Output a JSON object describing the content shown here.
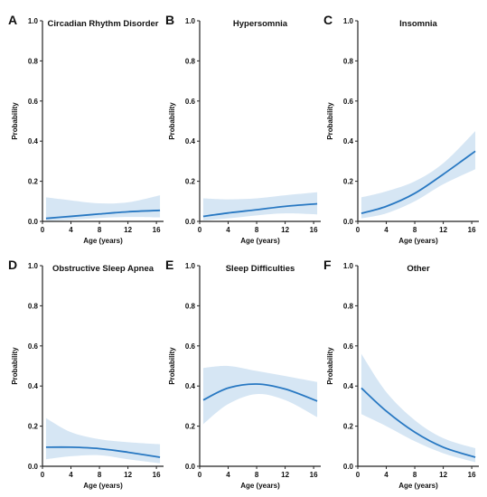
{
  "chart_data": [
    {
      "letter": "A",
      "title": "Circadian Rhythm Disorder",
      "type": "line",
      "xlabel": "Age (years)",
      "ylabel": "Probability",
      "xlim": [
        0,
        17
      ],
      "ylim": [
        0,
        1.0
      ],
      "x_ticks": [
        "0",
        "4",
        "8",
        "12",
        "16"
      ],
      "y_ticks": [
        "0.0",
        "0.2",
        "0.4",
        "0.6",
        "0.8",
        "1.0"
      ],
      "color": "#2878c2",
      "band_color": "#d6e6f4",
      "x": [
        0.5,
        4,
        8,
        12,
        16.5
      ],
      "y": [
        0.015,
        0.025,
        0.037,
        0.048,
        0.055
      ],
      "lower": [
        0.003,
        0.008,
        0.017,
        0.022,
        0.02
      ],
      "upper": [
        0.12,
        0.105,
        0.09,
        0.095,
        0.13
      ]
    },
    {
      "letter": "B",
      "title": "Hypersomnia",
      "type": "line",
      "xlabel": "Age (years)",
      "ylabel": "Probability",
      "xlim": [
        0,
        17
      ],
      "ylim": [
        0,
        1.0
      ],
      "x_ticks": [
        "0",
        "4",
        "8",
        "12",
        "16"
      ],
      "y_ticks": [
        "0.0",
        "0.2",
        "0.4",
        "0.6",
        "0.8",
        "1.0"
      ],
      "color": "#2878c2",
      "band_color": "#d6e6f4",
      "x": [
        0.5,
        4,
        8,
        12,
        16.5
      ],
      "y": [
        0.025,
        0.042,
        0.058,
        0.075,
        0.088
      ],
      "lower": [
        0.005,
        0.015,
        0.03,
        0.04,
        0.035
      ],
      "upper": [
        0.115,
        0.11,
        0.115,
        0.13,
        0.145
      ]
    },
    {
      "letter": "C",
      "title": "Insomnia",
      "type": "line",
      "xlabel": "Age (years)",
      "ylabel": "Probability",
      "xlim": [
        0,
        17
      ],
      "ylim": [
        0,
        1.0
      ],
      "x_ticks": [
        "0",
        "4",
        "8",
        "12",
        "16"
      ],
      "y_ticks": [
        "0.0",
        "0.2",
        "0.4",
        "0.6",
        "0.8",
        "1.0"
      ],
      "color": "#2878c2",
      "band_color": "#d6e6f4",
      "x": [
        0.5,
        4,
        8,
        12,
        16.5
      ],
      "y": [
        0.04,
        0.075,
        0.14,
        0.235,
        0.35
      ],
      "lower": [
        0.015,
        0.04,
        0.1,
        0.185,
        0.26
      ],
      "upper": [
        0.12,
        0.15,
        0.2,
        0.29,
        0.45
      ]
    },
    {
      "letter": "D",
      "title": "Obstructive Sleep Apnea",
      "type": "line",
      "xlabel": "Age (years)",
      "ylabel": "Probability",
      "xlim": [
        0,
        17
      ],
      "ylim": [
        0,
        1.0
      ],
      "x_ticks": [
        "0",
        "4",
        "8",
        "12",
        "16"
      ],
      "y_ticks": [
        "0.0",
        "0.2",
        "0.4",
        "0.6",
        "0.8",
        "1.0"
      ],
      "color": "#2878c2",
      "band_color": "#d6e6f4",
      "x": [
        0.5,
        4,
        8,
        12,
        16.5
      ],
      "y": [
        0.095,
        0.095,
        0.088,
        0.07,
        0.045
      ],
      "lower": [
        0.035,
        0.05,
        0.055,
        0.035,
        0.015
      ],
      "upper": [
        0.24,
        0.17,
        0.135,
        0.12,
        0.11
      ]
    },
    {
      "letter": "E",
      "title": "Sleep Difficulties",
      "type": "line",
      "xlabel": "Age (years)",
      "ylabel": "Probability",
      "xlim": [
        0,
        17
      ],
      "ylim": [
        0,
        1.0
      ],
      "x_ticks": [
        "0",
        "4",
        "8",
        "12",
        "16"
      ],
      "y_ticks": [
        "0.0",
        "0.2",
        "0.4",
        "0.6",
        "0.8",
        "1.0"
      ],
      "color": "#2878c2",
      "band_color": "#d6e6f4",
      "x": [
        0.5,
        4,
        8,
        12,
        16.5
      ],
      "y": [
        0.33,
        0.39,
        0.41,
        0.385,
        0.325
      ],
      "lower": [
        0.21,
        0.31,
        0.36,
        0.33,
        0.245
      ],
      "upper": [
        0.49,
        0.5,
        0.475,
        0.45,
        0.42
      ]
    },
    {
      "letter": "F",
      "title": "Other",
      "type": "line",
      "xlabel": "Age (years)",
      "ylabel": "Probability",
      "xlim": [
        0,
        17
      ],
      "ylim": [
        0,
        1.0
      ],
      "x_ticks": [
        "0",
        "4",
        "8",
        "12",
        "16"
      ],
      "y_ticks": [
        "0.0",
        "0.2",
        "0.4",
        "0.6",
        "0.8",
        "1.0"
      ],
      "color": "#2878c2",
      "band_color": "#d6e6f4",
      "x": [
        0.5,
        4,
        8,
        12,
        16.5
      ],
      "y": [
        0.39,
        0.275,
        0.17,
        0.095,
        0.045
      ],
      "lower": [
        0.26,
        0.2,
        0.125,
        0.065,
        0.02
      ],
      "upper": [
        0.56,
        0.37,
        0.23,
        0.14,
        0.09
      ]
    }
  ]
}
